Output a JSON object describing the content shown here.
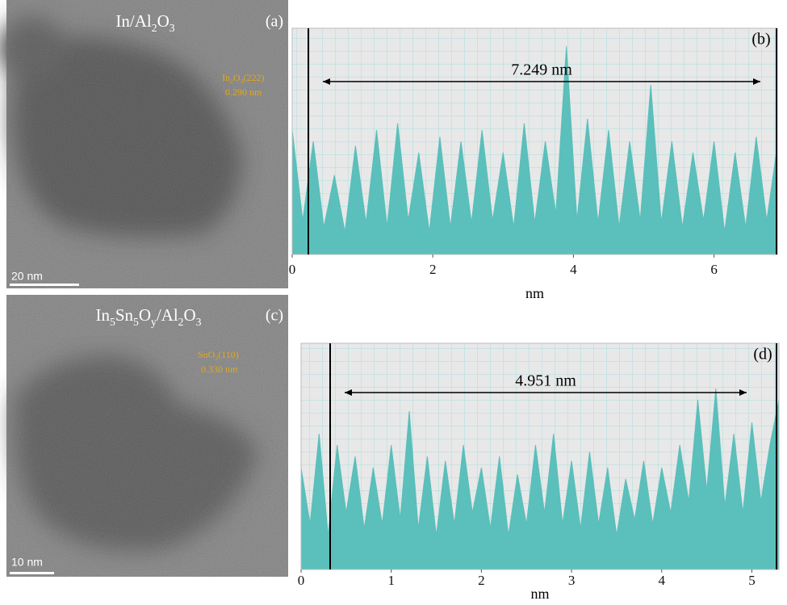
{
  "panels": [
    {
      "label": "(a)",
      "title": [
        "In/Al",
        "2",
        "O",
        "3"
      ],
      "annotation": [
        "In",
        "2",
        "O",
        "3",
        "(222)",
        "0.290 nm"
      ],
      "scale_bar": "20 nm"
    },
    {
      "label": "(c)",
      "title": [
        "In",
        "5",
        "Sn",
        "5",
        "O",
        "y",
        "/Al",
        "2",
        "O",
        "3"
      ],
      "annotation": [
        "SnO",
        "2",
        "(110)",
        "0.330 nm"
      ],
      "scale_bar": "10 nm"
    }
  ],
  "chart_data": [
    {
      "type": "area",
      "label": "(b)",
      "measurement": "7.249 nm",
      "xlabel": "nm",
      "color": "#5bbfbb",
      "xlim": [
        0,
        6.9
      ],
      "xticks": [
        0,
        2,
        4,
        6
      ],
      "ylim": [
        0,
        100
      ],
      "x": [
        0,
        0.15,
        0.3,
        0.45,
        0.6,
        0.75,
        0.9,
        1.05,
        1.2,
        1.35,
        1.5,
        1.65,
        1.8,
        1.95,
        2.1,
        2.25,
        2.4,
        2.55,
        2.7,
        2.85,
        3,
        3.15,
        3.3,
        3.45,
        3.6,
        3.75,
        3.9,
        4.05,
        4.2,
        4.35,
        4.5,
        4.65,
        4.8,
        4.95,
        5.1,
        5.25,
        5.4,
        5.55,
        5.7,
        5.85,
        6,
        6.15,
        6.3,
        6.45,
        6.6,
        6.75,
        6.9
      ],
      "values": [
        55,
        15,
        50,
        12,
        35,
        10,
        48,
        14,
        55,
        12,
        58,
        15,
        45,
        10,
        52,
        12,
        50,
        14,
        55,
        15,
        45,
        12,
        58,
        14,
        50,
        18,
        92,
        15,
        60,
        14,
        55,
        12,
        50,
        15,
        75,
        14,
        50,
        12,
        45,
        15,
        50,
        10,
        45,
        12,
        52,
        15,
        48
      ]
    },
    {
      "type": "area",
      "label": "(d)",
      "measurement": "4.951 nm",
      "xlabel": "nm",
      "color": "#5bbfbb",
      "xlim": [
        0,
        5.3
      ],
      "xticks": [
        0,
        1,
        2,
        3,
        4,
        5
      ],
      "ylim": [
        0,
        100
      ],
      "x": [
        0,
        0.1,
        0.2,
        0.3,
        0.4,
        0.5,
        0.6,
        0.7,
        0.8,
        0.9,
        1,
        1.1,
        1.2,
        1.3,
        1.4,
        1.5,
        1.6,
        1.7,
        1.8,
        1.9,
        2,
        2.1,
        2.2,
        2.3,
        2.4,
        2.5,
        2.6,
        2.7,
        2.8,
        2.9,
        3,
        3.1,
        3.2,
        3.3,
        3.4,
        3.5,
        3.6,
        3.7,
        3.8,
        3.9,
        4,
        4.1,
        4.2,
        4.3,
        4.4,
        4.5,
        4.6,
        4.7,
        4.8,
        4.9,
        5,
        5.1,
        5.2,
        5.3
      ],
      "values": [
        45,
        20,
        60,
        15,
        55,
        25,
        50,
        18,
        45,
        20,
        55,
        22,
        70,
        18,
        50,
        15,
        48,
        20,
        55,
        25,
        45,
        18,
        50,
        15,
        42,
        20,
        55,
        25,
        60,
        20,
        48,
        18,
        52,
        20,
        45,
        15,
        40,
        22,
        48,
        20,
        45,
        25,
        55,
        30,
        75,
        35,
        80,
        28,
        60,
        25,
        65,
        30,
        55,
        75
      ]
    }
  ]
}
